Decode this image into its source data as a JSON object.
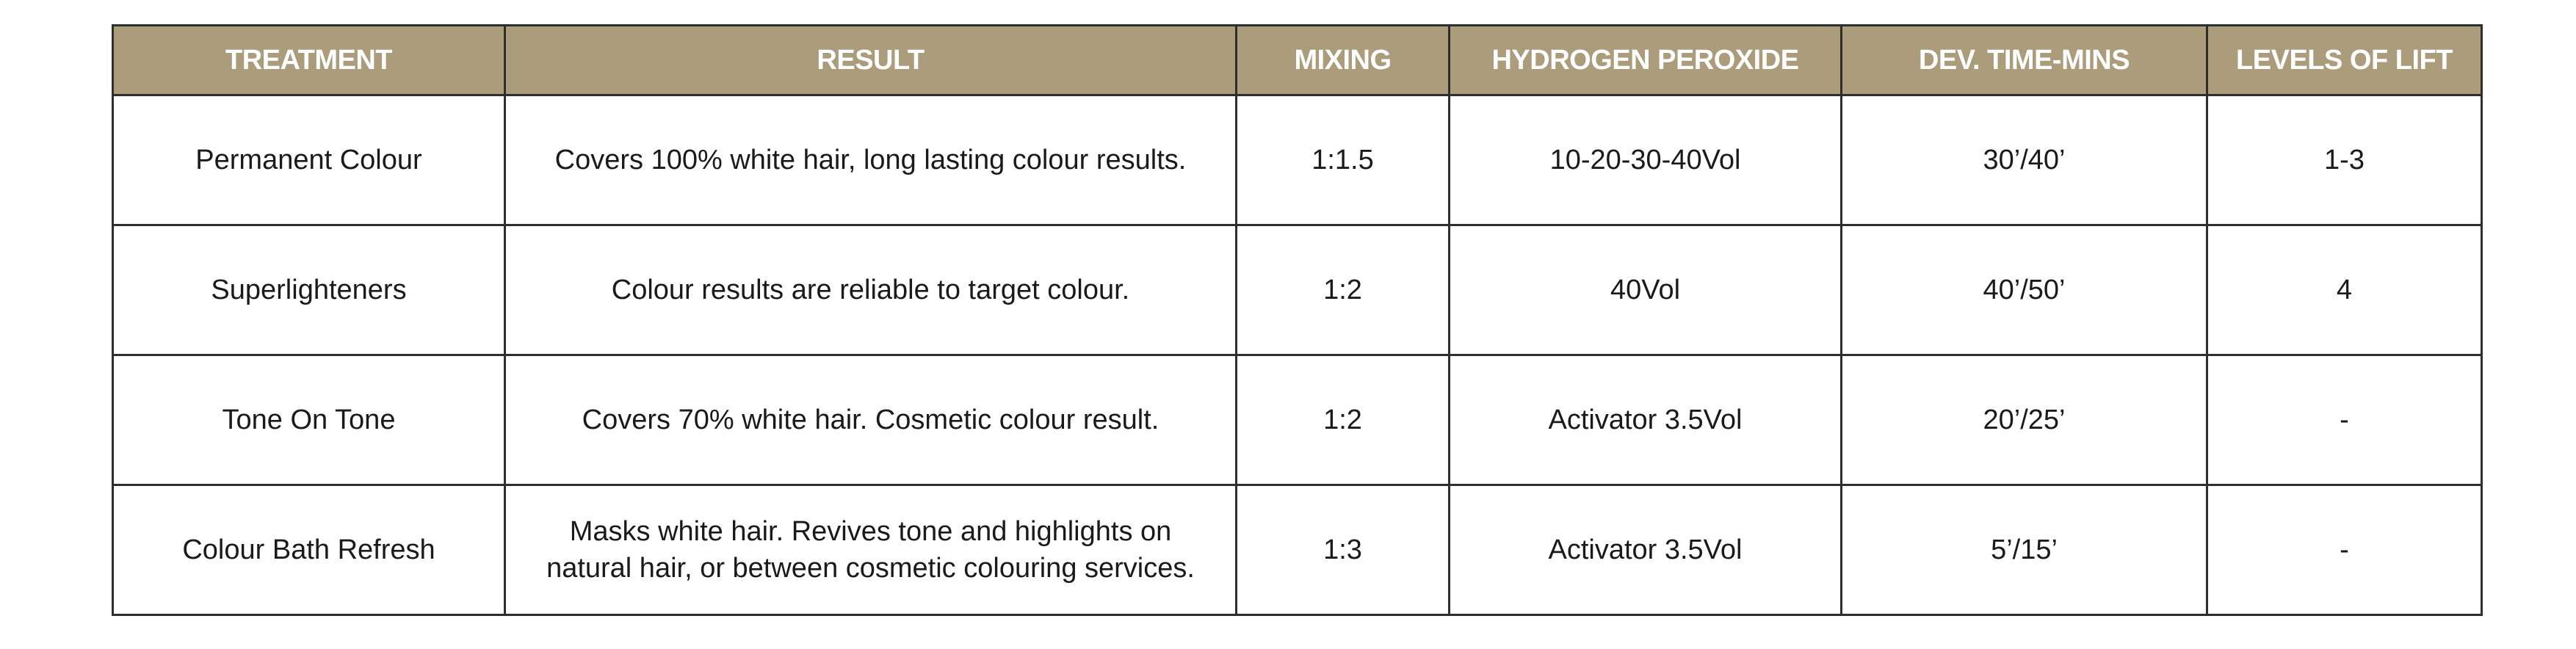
{
  "colors": {
    "header_background": "#ab9c7c",
    "header_text": "#ffffff",
    "border": "#2e2e2e",
    "body_text": "#1a1a1a"
  },
  "table": {
    "headers": [
      "TREATMENT",
      "RESULT",
      "MIXING",
      "HYDROGEN PEROXIDE",
      "DEV. TIME-MINS",
      "LEVELS OF LIFT"
    ],
    "rows": [
      {
        "treatment": "Permanent Colour",
        "result": "Covers 100% white hair, long lasting colour results.",
        "mixing": "1:1.5",
        "hydrogen_peroxide": "10-20-30-40Vol",
        "dev_time": "30’/40’",
        "levels_of_lift": "1-3"
      },
      {
        "treatment": "Superlighteners",
        "result": "Colour results are reliable to target colour.",
        "mixing": "1:2",
        "hydrogen_peroxide": "40Vol",
        "dev_time": "40’/50’",
        "levels_of_lift": "4"
      },
      {
        "treatment": "Tone On Tone",
        "result": "Covers 70% white hair. Cosmetic colour result.",
        "mixing": "1:2",
        "hydrogen_peroxide": "Activator 3.5Vol",
        "dev_time": "20’/25’",
        "levels_of_lift": "-"
      },
      {
        "treatment": "Colour Bath Refresh",
        "result": "Masks white hair. Revives tone and highlights on natural hair, or between cosmetic colouring services.",
        "mixing": "1:3",
        "hydrogen_peroxide": "Activator 3.5Vol",
        "dev_time": "5’/15’",
        "levels_of_lift": "-"
      }
    ]
  }
}
